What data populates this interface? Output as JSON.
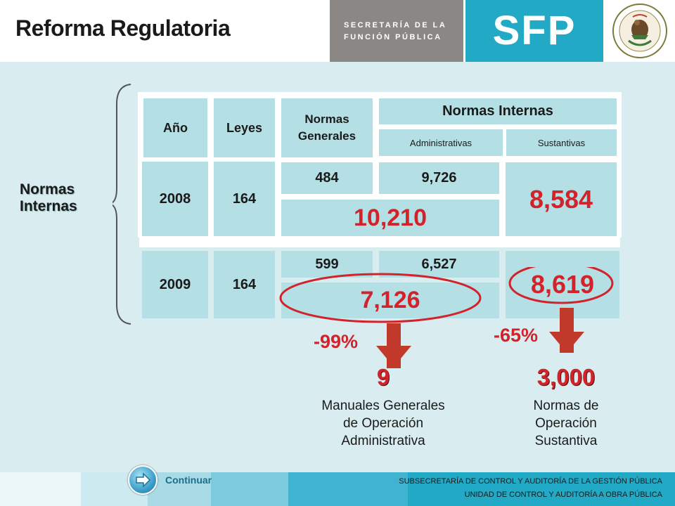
{
  "header": {
    "title": "Reforma Regulatoria",
    "secretaria_line1": "SECRETARÍA DE LA",
    "secretaria_line2": "FUNCIÓN PÚBLICA",
    "sfp_logo": "SFP",
    "seal_icon": "mexican-coat-of-arms-icon"
  },
  "side_label": {
    "line1": "Normas",
    "line2": "Internas"
  },
  "table": {
    "headers": {
      "anio": "Año",
      "leyes": "Leyes",
      "normas_generales": "Normas Generales",
      "normas_internas": "Normas Internas",
      "administrativas": "Administrativas",
      "sustantivas": "Sustantivas"
    },
    "rows": [
      {
        "anio": "2008",
        "leyes": "164",
        "normas_generales": "484",
        "administrativas": "9,726",
        "subtotal": "10,210",
        "sustantivas": "8,584"
      },
      {
        "anio": "2009",
        "leyes": "164",
        "normas_generales": "599",
        "administrativas": "6,527",
        "subtotal": "7,126",
        "sustantivas": "8,619"
      }
    ]
  },
  "results": {
    "left": {
      "percent": "-99%",
      "value": "9",
      "desc_line1": "Manuales Generales",
      "desc_line2": "de Operación",
      "desc_line3": "Administrativa"
    },
    "right": {
      "percent": "-65%",
      "value": "3,000",
      "desc_line1": "Normas de",
      "desc_line2": "Operación",
      "desc_line3": "Sustantiva"
    }
  },
  "footer": {
    "continuar": "Continuar",
    "line1": "SUBSECRETARÍA  DE CONTROL  Y AUDITORÍA  DE LA GESTIÓN PÚBLICA",
    "line2": "UNIDAD DE CONTROL  Y AUDITORÍA  A OBRA PÚBLICA"
  },
  "colors": {
    "accent_red": "#d2232a",
    "cell_blue": "#b4dfe5",
    "panel_bg": "#d9edf1",
    "sfp_teal": "#21a9c6",
    "gray_logo": "#8a8784"
  }
}
